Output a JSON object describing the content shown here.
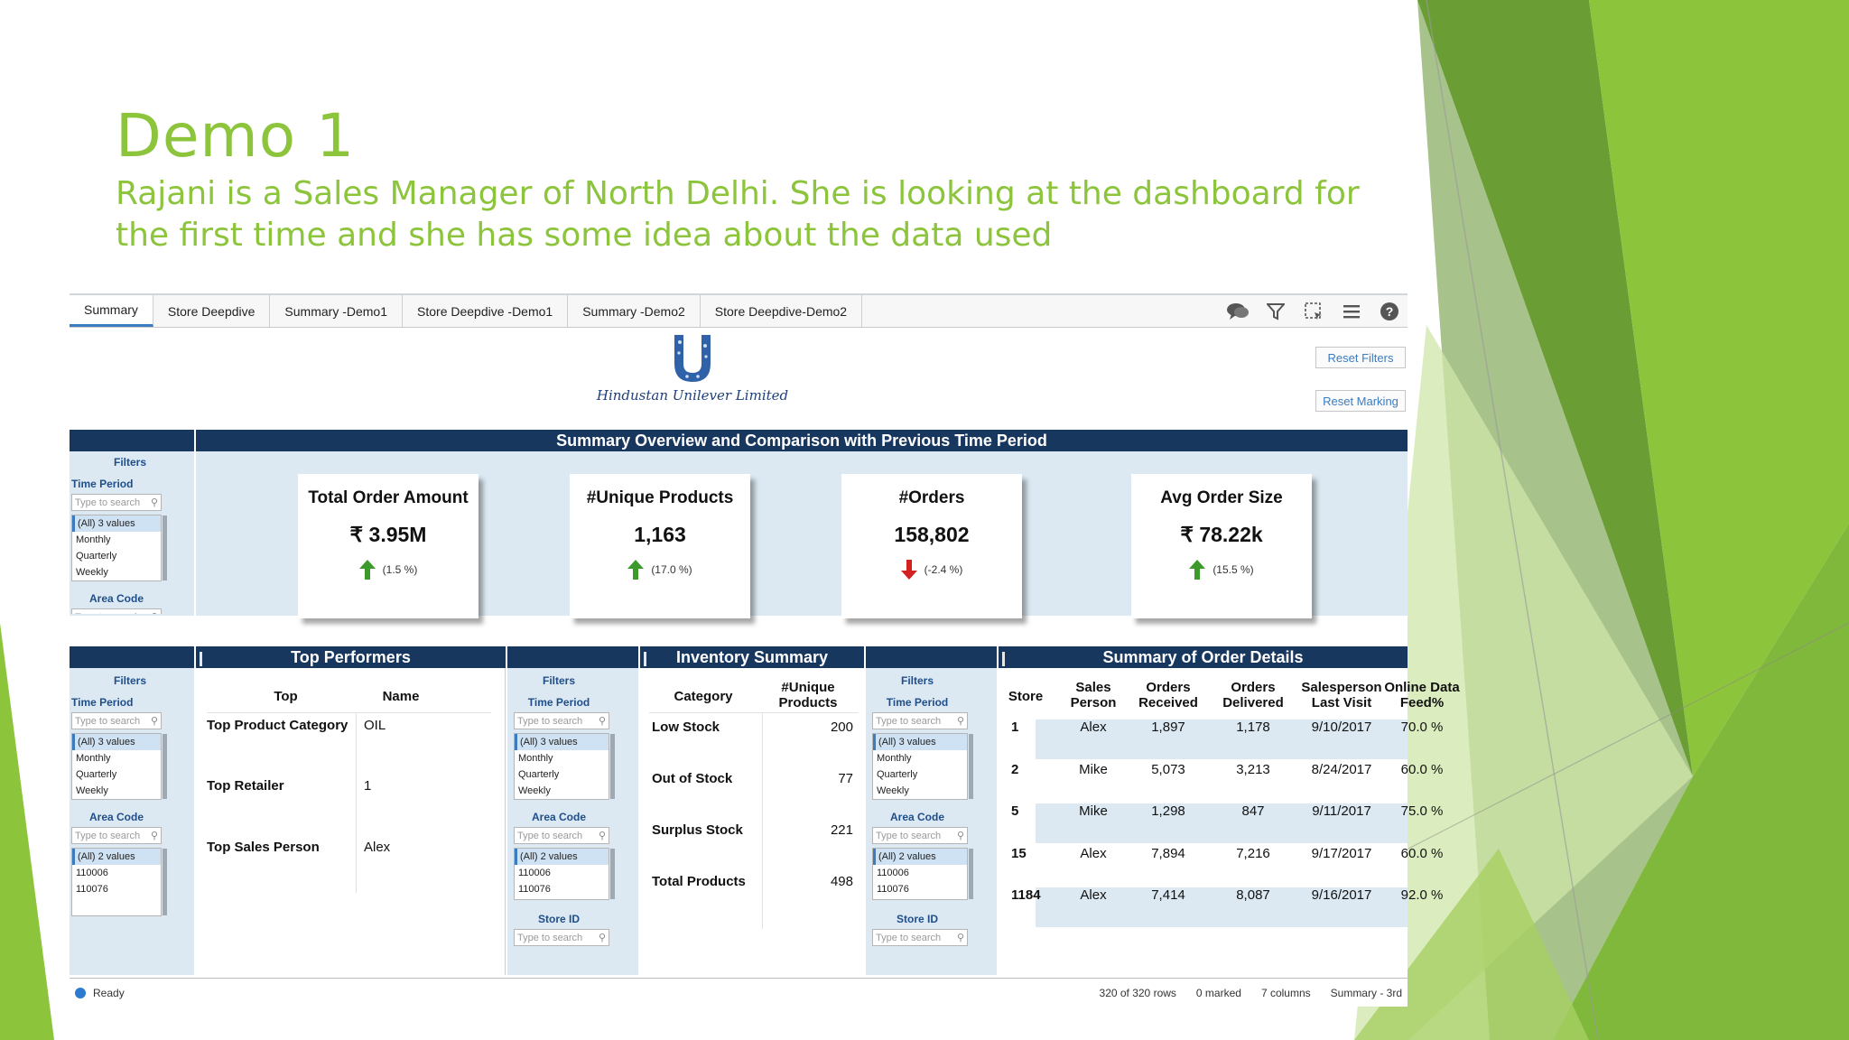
{
  "slide": {
    "title": "Demo 1",
    "subtitle": "Rajani is a Sales Manager of North Delhi. She is looking at the dashboard for the first time and she has some idea about the data used",
    "colors": {
      "title": "#8cc43c",
      "deco_dark": "#5f9c2e",
      "deco_mid": "#7fbb3a",
      "deco_light": "#b9dc82"
    }
  },
  "tabs": [
    "Summary",
    "Store Deepdive",
    "Summary -Demo1",
    "Store Deepdive -Demo1",
    "Summary -Demo2",
    "Store Deepdive-Demo2"
  ],
  "toolbar_icons": [
    "comment-icon",
    "filter-icon",
    "selection-icon",
    "menu-icon",
    "help-icon"
  ],
  "logo_text": "Hindustan Unilever Limited",
  "buttons": {
    "reset_filters": "Reset Filters",
    "reset_marking": "Reset Marking"
  },
  "summary_header": "Summary Overview and Comparison with Previous Time Period",
  "filters_common": {
    "title": "Filters",
    "time_period": "Time Period",
    "area_code": "Area Code",
    "store_id": "Store ID",
    "search_placeholder": "Type to search",
    "time_values": [
      "(All) 3 values",
      "Monthly",
      "Quarterly",
      "Weekly"
    ],
    "area_values": [
      "(All) 2 values",
      "110006",
      "110076"
    ]
  },
  "kpis": [
    {
      "title": "Total Order Amount",
      "value": "₹ 3.95M",
      "change": "(1.5 %)",
      "direction": "up"
    },
    {
      "title": "#Unique Products",
      "value": "1,163",
      "change": "(17.0 %)",
      "direction": "up"
    },
    {
      "title": "#Orders",
      "value": "158,802",
      "change": "(-2.4 %)",
      "direction": "down"
    },
    {
      "title": "Avg Order Size",
      "value": "₹ 78.22k",
      "change": "(15.5 %)",
      "direction": "up"
    }
  ],
  "top_performers": {
    "header": "Top Performers",
    "columns": [
      "Top",
      "Name"
    ],
    "rows": [
      {
        "top": "Top Product Category",
        "name": "OIL"
      },
      {
        "top": "Top Retailer",
        "name": "1"
      },
      {
        "top": "Top Sales Person",
        "name": "Alex"
      }
    ]
  },
  "inventory": {
    "header": "Inventory Summary",
    "columns": [
      "Category",
      "#Unique Products"
    ],
    "rows": [
      {
        "category": "Low Stock",
        "count": "200"
      },
      {
        "category": "Out of Stock",
        "count": "77"
      },
      {
        "category": "Surplus Stock",
        "count": "221"
      },
      {
        "category": "Total Products",
        "count": "498"
      }
    ]
  },
  "order_details": {
    "header": "Summary of Order Details",
    "columns": [
      "Store",
      "Sales Person",
      "Orders Received",
      "Orders Delivered",
      "Salesperson Last Visit",
      "Online Data Feed%"
    ],
    "rows": [
      [
        "1",
        "Alex",
        "1,897",
        "1,178",
        "9/10/2017",
        "70.0 %"
      ],
      [
        "2",
        "Mike",
        "5,073",
        "3,213",
        "8/24/2017",
        "60.0 %"
      ],
      [
        "5",
        "Mike",
        "1,298",
        "847",
        "9/11/2017",
        "75.0 %"
      ],
      [
        "15",
        "Alex",
        "7,894",
        "7,216",
        "9/17/2017",
        "60.0 %"
      ],
      [
        "1184",
        "Alex",
        "7,414",
        "8,087",
        "9/16/2017",
        "92.0 %"
      ]
    ]
  },
  "status": {
    "state": "Ready",
    "rows": "320 of 320 rows",
    "marked": "0 marked",
    "columns": "7 columns",
    "page": "Summary - 3rd"
  }
}
